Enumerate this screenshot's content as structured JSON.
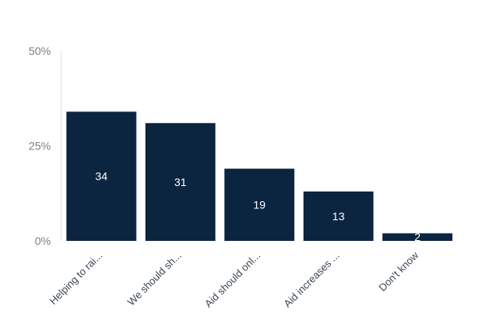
{
  "chart_data": {
    "type": "bar",
    "categories": [
      "Helping to rai...",
      "We should sh...",
      "Aid should onl...",
      "Aid increases ...",
      "Don't know"
    ],
    "values": [
      34,
      31,
      19,
      13,
      2
    ],
    "data_labels": [
      "34",
      "31",
      "19",
      "13",
      "2"
    ],
    "y_ticks": [
      {
        "value": 0,
        "label": "0%"
      },
      {
        "value": 25,
        "label": "25%"
      },
      {
        "value": 50,
        "label": "50%"
      }
    ],
    "ylim": [
      0,
      50
    ],
    "grid": false,
    "legend": "none",
    "colors": {
      "bar": "#0b2540",
      "axis": "#d9dce0"
    }
  }
}
